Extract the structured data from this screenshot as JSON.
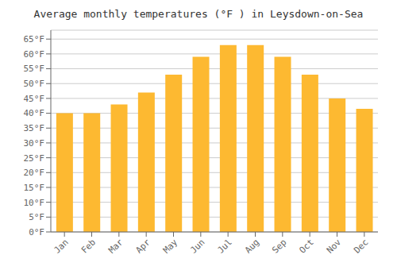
{
  "chart_data": {
    "type": "bar",
    "title": "Average monthly temperatures (°F ) in Leysdown-on-Sea",
    "categories": [
      "Jan",
      "Feb",
      "Mar",
      "Apr",
      "May",
      "Jun",
      "Jul",
      "Aug",
      "Sep",
      "Oct",
      "Nov",
      "Dec"
    ],
    "values": [
      40,
      40,
      43,
      47,
      53,
      59,
      63,
      63,
      59,
      53,
      45,
      41.5
    ],
    "color": "#FDB931",
    "ylim": [
      0,
      68
    ],
    "yticks": [
      {
        "value": 0,
        "label": "0°F"
      },
      {
        "value": 5,
        "label": "5°F"
      },
      {
        "value": 10,
        "label": "10°F"
      },
      {
        "value": 15,
        "label": "15°F"
      },
      {
        "value": 20,
        "label": "20°F"
      },
      {
        "value": 25,
        "label": "25°F"
      },
      {
        "value": 30,
        "label": "30°F"
      },
      {
        "value": 35,
        "label": "35°F"
      },
      {
        "value": 40,
        "label": "40°F"
      },
      {
        "value": 45,
        "label": "45°F"
      },
      {
        "value": 50,
        "label": "50°F"
      },
      {
        "value": 55,
        "label": "55°F"
      },
      {
        "value": 60,
        "label": "60°F"
      },
      {
        "value": 65,
        "label": "65°F"
      }
    ],
    "grid": true
  }
}
